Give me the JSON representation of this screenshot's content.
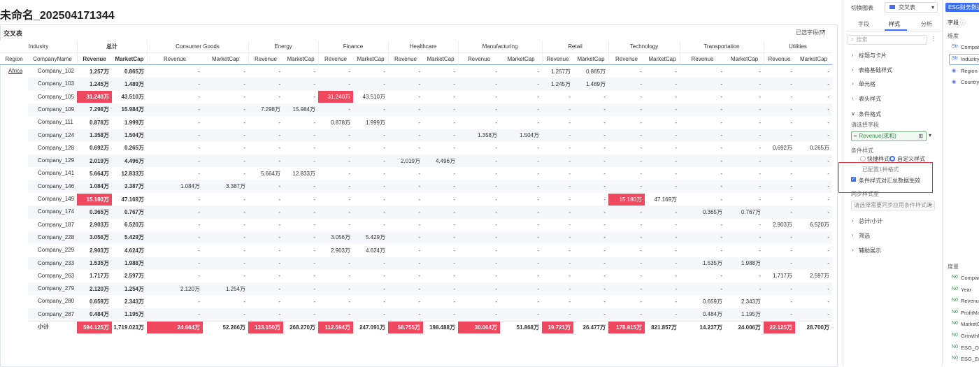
{
  "header": {
    "title": "未命名_202504171344"
  },
  "table": {
    "title": "交叉表",
    "selected_fields": "已选字段(5)",
    "corner": "Industry",
    "total": "总计",
    "industries": [
      "Consumer Goods",
      "Energy",
      "Finance",
      "Healthcare",
      "Manufacturing",
      "Retail",
      "Technology",
      "Transportation",
      "Utilities"
    ],
    "row_headers": [
      "Region",
      "CompanyName"
    ],
    "measures": [
      "Revenue",
      "MarketCap"
    ],
    "region": "Africa",
    "highlight_color": "#f0485f",
    "rows": [
      {
        "company": "Company_102",
        "cells": [
          "1.257万",
          "0.865万",
          "-",
          "-",
          "-",
          "-",
          "-",
          "-",
          "-",
          "-",
          "-",
          "-",
          "1.257万",
          "0.865万",
          "-",
          "-",
          "-",
          "-",
          "-",
          "-"
        ],
        "highlight": []
      },
      {
        "company": "Company_103",
        "cells": [
          "1.245万",
          "1.489万",
          "-",
          "-",
          "-",
          "-",
          "-",
          "-",
          "-",
          "-",
          "-",
          "-",
          "1.245万",
          "1.489万",
          "-",
          "-",
          "-",
          "-",
          "-",
          "-"
        ],
        "highlight": []
      },
      {
        "company": "Company_105",
        "cells": [
          "31.240万",
          "43.510万",
          "-",
          "-",
          "-",
          "-",
          "31.240万",
          "43.510万",
          "-",
          "-",
          "-",
          "-",
          "-",
          "-",
          "-",
          "-",
          "-",
          "-",
          "-",
          "-"
        ],
        "highlight": [
          0,
          6
        ]
      },
      {
        "company": "Company_109",
        "cells": [
          "7.298万",
          "15.984万",
          "-",
          "-",
          "7.298万",
          "15.984万",
          "-",
          "-",
          "-",
          "-",
          "-",
          "-",
          "-",
          "-",
          "-",
          "-",
          "-",
          "-",
          "-",
          "-"
        ],
        "highlight": []
      },
      {
        "company": "Company_111",
        "cells": [
          "0.878万",
          "1.999万",
          "-",
          "-",
          "-",
          "-",
          "0.878万",
          "1.999万",
          "-",
          "-",
          "-",
          "-",
          "-",
          "-",
          "-",
          "-",
          "-",
          "-",
          "-",
          "-"
        ],
        "highlight": []
      },
      {
        "company": "Company_124",
        "cells": [
          "1.358万",
          "1.504万",
          "-",
          "-",
          "-",
          "-",
          "-",
          "-",
          "-",
          "-",
          "1.358万",
          "1.504万",
          "-",
          "-",
          "-",
          "-",
          "-",
          "-",
          "-",
          "-"
        ],
        "highlight": []
      },
      {
        "company": "Company_128",
        "cells": [
          "0.692万",
          "0.265万",
          "-",
          "-",
          "-",
          "-",
          "-",
          "-",
          "-",
          "-",
          "-",
          "-",
          "-",
          "-",
          "-",
          "-",
          "-",
          "-",
          "0.692万",
          "0.265万"
        ],
        "highlight": []
      },
      {
        "company": "Company_129",
        "cells": [
          "2.019万",
          "4.496万",
          "-",
          "-",
          "-",
          "-",
          "-",
          "-",
          "2.019万",
          "4.496万",
          "-",
          "-",
          "-",
          "-",
          "-",
          "-",
          "-",
          "-",
          "-",
          "-"
        ],
        "highlight": []
      },
      {
        "company": "Company_141",
        "cells": [
          "5.664万",
          "12.833万",
          "-",
          "-",
          "5.664万",
          "12.833万",
          "-",
          "-",
          "-",
          "-",
          "-",
          "-",
          "-",
          "-",
          "-",
          "-",
          "-",
          "-",
          "-",
          "-"
        ],
        "highlight": []
      },
      {
        "company": "Company_146",
        "cells": [
          "1.084万",
          "3.387万",
          "1.084万",
          "3.387万",
          "-",
          "-",
          "-",
          "-",
          "-",
          "-",
          "-",
          "-",
          "-",
          "-",
          "-",
          "-",
          "-",
          "-",
          "-",
          "-"
        ],
        "highlight": []
      },
      {
        "company": "Company_149",
        "cells": [
          "15.180万",
          "47.169万",
          "-",
          "-",
          "-",
          "-",
          "-",
          "-",
          "-",
          "-",
          "-",
          "-",
          "-",
          "-",
          "15.180万",
          "47.169万",
          "-",
          "-",
          "-",
          "-"
        ],
        "highlight": [
          0,
          14
        ]
      },
      {
        "company": "Company_174",
        "cells": [
          "0.365万",
          "0.767万",
          "-",
          "-",
          "-",
          "-",
          "-",
          "-",
          "-",
          "-",
          "-",
          "-",
          "-",
          "-",
          "-",
          "-",
          "0.365万",
          "0.767万",
          "-",
          "-"
        ],
        "highlight": []
      },
      {
        "company": "Company_187",
        "cells": [
          "2.903万",
          "6.520万",
          "-",
          "-",
          "-",
          "-",
          "-",
          "-",
          "-",
          "-",
          "-",
          "-",
          "-",
          "-",
          "-",
          "-",
          "-",
          "-",
          "2.903万",
          "6.520万"
        ],
        "highlight": []
      },
      {
        "company": "Company_228",
        "cells": [
          "3.056万",
          "5.429万",
          "-",
          "-",
          "-",
          "-",
          "3.056万",
          "5.429万",
          "-",
          "-",
          "-",
          "-",
          "-",
          "-",
          "-",
          "-",
          "-",
          "-",
          "-",
          "-"
        ],
        "highlight": []
      },
      {
        "company": "Company_229",
        "cells": [
          "2.903万",
          "4.624万",
          "-",
          "-",
          "-",
          "-",
          "2.903万",
          "4.624万",
          "-",
          "-",
          "-",
          "-",
          "-",
          "-",
          "-",
          "-",
          "-",
          "-",
          "-",
          "-"
        ],
        "highlight": []
      },
      {
        "company": "Company_233",
        "cells": [
          "1.535万",
          "1.988万",
          "-",
          "-",
          "-",
          "-",
          "-",
          "-",
          "-",
          "-",
          "-",
          "-",
          "-",
          "-",
          "-",
          "-",
          "1.535万",
          "1.988万",
          "-",
          "-"
        ],
        "highlight": []
      },
      {
        "company": "Company_263",
        "cells": [
          "1.717万",
          "2.597万",
          "-",
          "-",
          "-",
          "-",
          "-",
          "-",
          "-",
          "-",
          "-",
          "-",
          "-",
          "-",
          "-",
          "-",
          "-",
          "-",
          "1.717万",
          "2.597万"
        ],
        "highlight": []
      },
      {
        "company": "Company_279",
        "cells": [
          "2.120万",
          "1.254万",
          "2.120万",
          "1.254万",
          "-",
          "-",
          "-",
          "-",
          "-",
          "-",
          "-",
          "-",
          "-",
          "-",
          "-",
          "-",
          "-",
          "-",
          "-",
          "-"
        ],
        "highlight": []
      },
      {
        "company": "Company_280",
        "cells": [
          "0.659万",
          "2.343万",
          "-",
          "-",
          "-",
          "-",
          "-",
          "-",
          "-",
          "-",
          "-",
          "-",
          "-",
          "-",
          "-",
          "-",
          "0.659万",
          "2.343万",
          "-",
          "-"
        ],
        "highlight": []
      },
      {
        "company": "Company_287",
        "cells": [
          "0.484万",
          "1.195万",
          "-",
          "-",
          "-",
          "-",
          "-",
          "-",
          "-",
          "-",
          "-",
          "-",
          "-",
          "-",
          "-",
          "-",
          "0.484万",
          "1.195万",
          "-",
          "-"
        ],
        "highlight": []
      }
    ],
    "subtotal": {
      "label": "小计",
      "cells": [
        "594.125万",
        "1,719.023万",
        "24.664万",
        "52.266万",
        "133.150万",
        "268.270万",
        "112.594万",
        "247.091万",
        "58.755万",
        "198.488万",
        "30.064万",
        "51.868万",
        "19.721万",
        "26.477万",
        "178.815万",
        "821.857万",
        "14.237万",
        "24.006万",
        "22.125万",
        "28.700万"
      ],
      "highlight": [
        0,
        2,
        4,
        6,
        8,
        10,
        12,
        14,
        18
      ]
    }
  },
  "panel": {
    "switch_label": "切换图表",
    "chart_type": "交叉表",
    "tabs": [
      "字段",
      "样式",
      "分析"
    ],
    "search": "搜索",
    "sections": [
      "标题与卡片",
      "表格基础样式",
      "单元格",
      "表头样式"
    ],
    "conditional": {
      "title": "条件格式",
      "field_label": "请选择字段",
      "field": "Revenue(求和)",
      "style_label": "条件样式",
      "options": [
        "快捷样式",
        "自定义样式"
      ],
      "configured": "已配置1种格式",
      "apply_summary": "条件样式对汇总数据生效",
      "sync_label": "同步样式至",
      "sync_placeholder": "请选择需要同步应用条件样式的..."
    },
    "more_sections": [
      "总计/小计",
      "筛选",
      "辅助展示"
    ]
  },
  "fields": {
    "dataset": "ESG财务数据",
    "title": "字段",
    "dimensions_label": "维度",
    "dimensions": [
      "Compan",
      "Industry",
      "Region",
      "Country"
    ],
    "measures_label": "度量",
    "measures": [
      "Compan",
      "Year",
      "Revenue",
      "ProfitMa",
      "MarketC",
      "GrowthR",
      "ESG_Ov",
      "ESG_En"
    ]
  }
}
